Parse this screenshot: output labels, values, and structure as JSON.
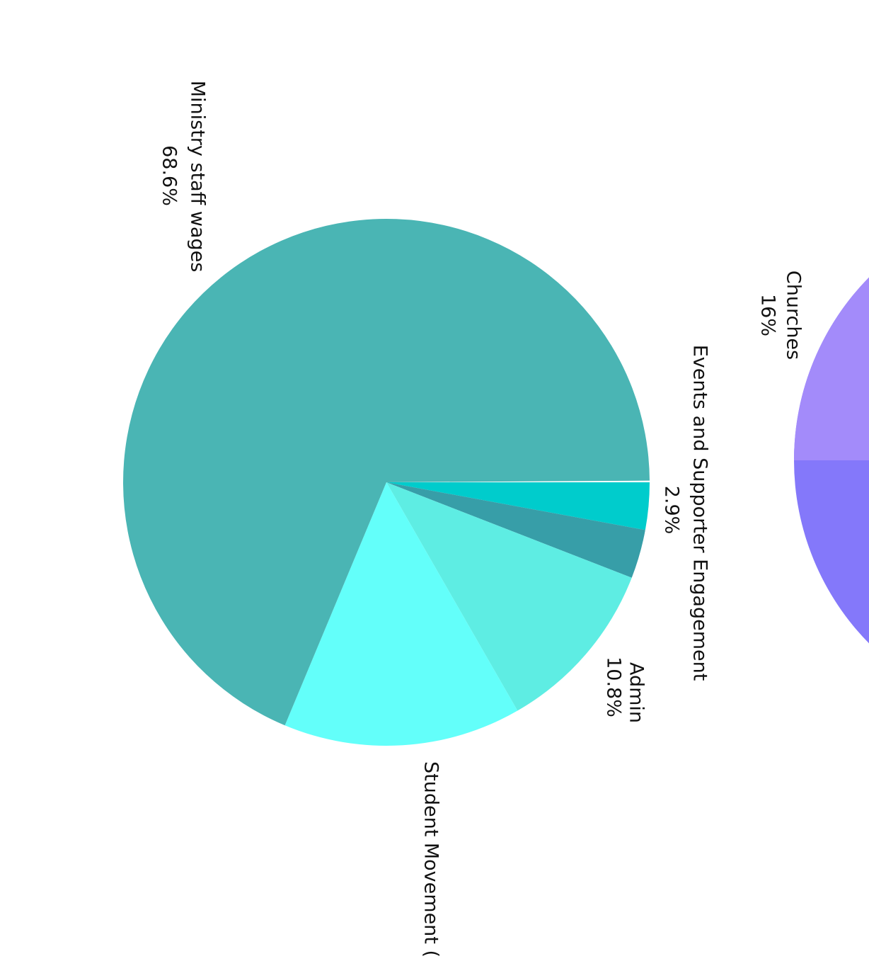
{
  "chart_data": [
    {
      "type": "pie",
      "categories": [
        "Events and Supporter Engagement",
        null,
        "Admin",
        "Student Movement (",
        "Ministry staff wages"
      ],
      "values": [
        2.9,
        3.0,
        10.8,
        14.6,
        68.6
      ],
      "value_labels": [
        "2.9%",
        null,
        "10.8%",
        null,
        "68.6%"
      ],
      "colors": [
        "#00cccc",
        "#379ea8",
        "#5eede3",
        "#63fffa",
        "#4ab5b4"
      ]
    },
    {
      "type": "pie",
      "categories": [
        "Churches"
      ],
      "values": [
        16
      ],
      "value_labels": [
        "16%"
      ],
      "colors": [
        "#a38bfa"
      ]
    }
  ]
}
